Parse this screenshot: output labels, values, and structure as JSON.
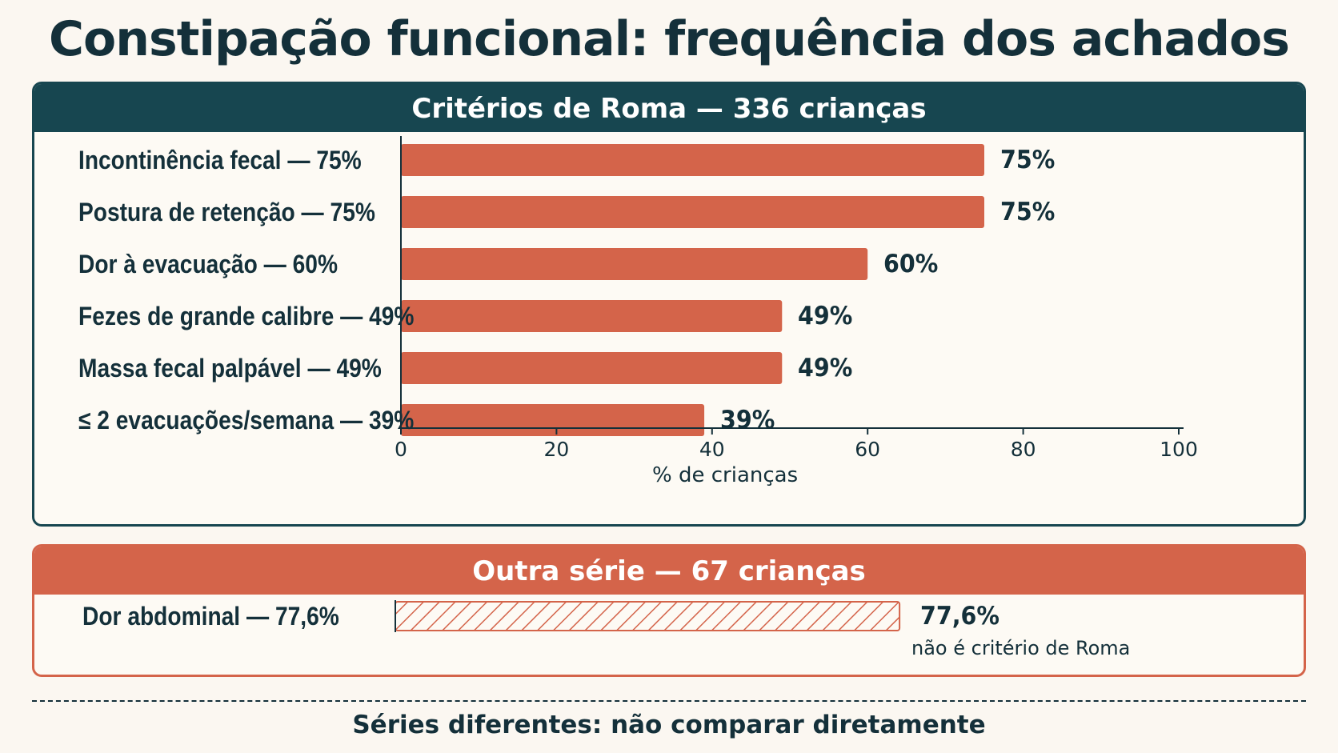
{
  "title": "Constipação funcional: frequência dos achados",
  "chart_data": [
    {
      "type": "bar",
      "orientation": "horizontal",
      "panel_title": "Critérios de Roma — 336 crianças",
      "categories": [
        "Incontinência fecal — 75%",
        "Postura de retenção — 75%",
        "Dor à evacuação — 60%",
        "Fezes de grande calibre — 49%",
        "Massa fecal palpável — 49%",
        "≤ 2 evacuações/semana — 39%"
      ],
      "values": [
        75,
        75,
        60,
        49,
        49,
        39
      ],
      "value_labels": [
        "75%",
        "75%",
        "60%",
        "49%",
        "49%",
        "39%"
      ],
      "xlabel": "% de crianças",
      "xlim": [
        0,
        100
      ],
      "ticks": [
        0,
        20,
        40,
        60,
        80,
        100
      ],
      "bar_color": "#d4644a",
      "header_color": "#174650"
    },
    {
      "type": "bar",
      "orientation": "horizontal",
      "panel_title": "Outra série — 67 crianças",
      "categories": [
        "Dor abdominal — 77,6%"
      ],
      "values": [
        77.6
      ],
      "value_labels": [
        "77,6%"
      ],
      "xlim": [
        0,
        100
      ],
      "fill": "hatched",
      "note": "não é critério de Roma",
      "bar_color": "#d4644a",
      "header_color": "#d4644a"
    }
  ],
  "footer": "Séries diferentes: não comparar diretamente"
}
